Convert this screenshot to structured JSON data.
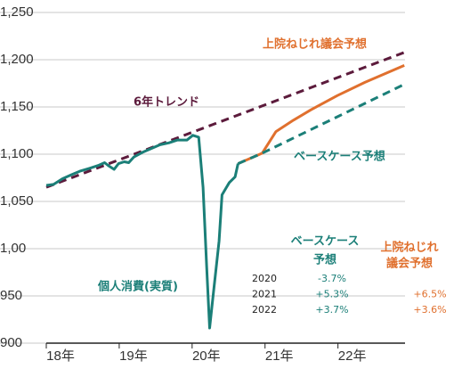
{
  "chart_data": {
    "type": "line",
    "xlim": [
      2018,
      2022.92
    ],
    "xticks": [
      {
        "value": 2018,
        "label": "18年"
      },
      {
        "value": 2019,
        "label": "19年"
      },
      {
        "value": 2020,
        "label": "20年"
      },
      {
        "value": 2021,
        "label": "21年"
      },
      {
        "value": 2022,
        "label": "22年"
      }
    ],
    "ylim": [
      900,
      1250
    ],
    "yticks": [
      900,
      950,
      {
        "value": 1000,
        "label": "1,00"
      },
      {
        "value": 1050,
        "label": "1,050"
      },
      {
        "value": 1100,
        "label": "1,100"
      },
      {
        "value": 1150,
        "label": "1,150"
      },
      {
        "value": 1200,
        "label": "1,200"
      },
      {
        "value": 1250,
        "label": "1,250"
      }
    ],
    "grid": true,
    "series": [
      {
        "name": "6年トレンド",
        "color": "#5c1b3c",
        "dash": true,
        "x": [
          2018.0,
          2022.92
        ],
        "values": [
          1065,
          1208
        ]
      },
      {
        "name": "上院ねじれ議会予想",
        "color": "#e0702e",
        "dash": false,
        "x": [
          2020.63,
          2020.96,
          2021.15,
          2021.39,
          2021.63,
          2021.99,
          2022.37,
          2022.91
        ],
        "values": [
          1090,
          1101,
          1124,
          1136,
          1147,
          1162,
          1176,
          1194
        ]
      },
      {
        "name": "ベースケース予想",
        "color": "#1b7f78",
        "dash": true,
        "x": [
          2020.63,
          2020.96,
          2022.91
        ],
        "values": [
          1090,
          1101,
          1174
        ]
      },
      {
        "name": "個人消費(実質)",
        "color": "#1b7f78",
        "dash": false,
        "x": [
          2018.0,
          2018.1,
          2018.22,
          2018.34,
          2018.46,
          2018.59,
          2018.71,
          2018.8,
          2018.85,
          2018.93,
          2018.99,
          2019.07,
          2019.13,
          2019.2,
          2019.32,
          2019.44,
          2019.56,
          2019.68,
          2019.8,
          2019.93,
          2020.01,
          2020.09,
          2020.15,
          2020.2,
          2020.24,
          2020.29,
          2020.37,
          2020.41,
          2020.51,
          2020.59,
          2020.63
        ],
        "values": [
          1067,
          1068,
          1074,
          1078,
          1082,
          1085,
          1088,
          1091,
          1088,
          1084,
          1090,
          1092,
          1091,
          1097,
          1102,
          1106,
          1110,
          1112,
          1115,
          1115,
          1120,
          1118,
          1065,
          980,
          916,
          952,
          1008,
          1057,
          1070,
          1076,
          1090
        ]
      }
    ],
    "table": {
      "columns": [
        "ベースケース",
        "予想",
        "上院ねじれ",
        "議会予想"
      ],
      "rows": [
        [
          "2020",
          "-3.7%",
          null
        ],
        [
          "2021",
          "+5.3%",
          "+6.5%"
        ],
        [
          "2022",
          "+3.7%",
          "+3.6%"
        ]
      ]
    }
  }
}
